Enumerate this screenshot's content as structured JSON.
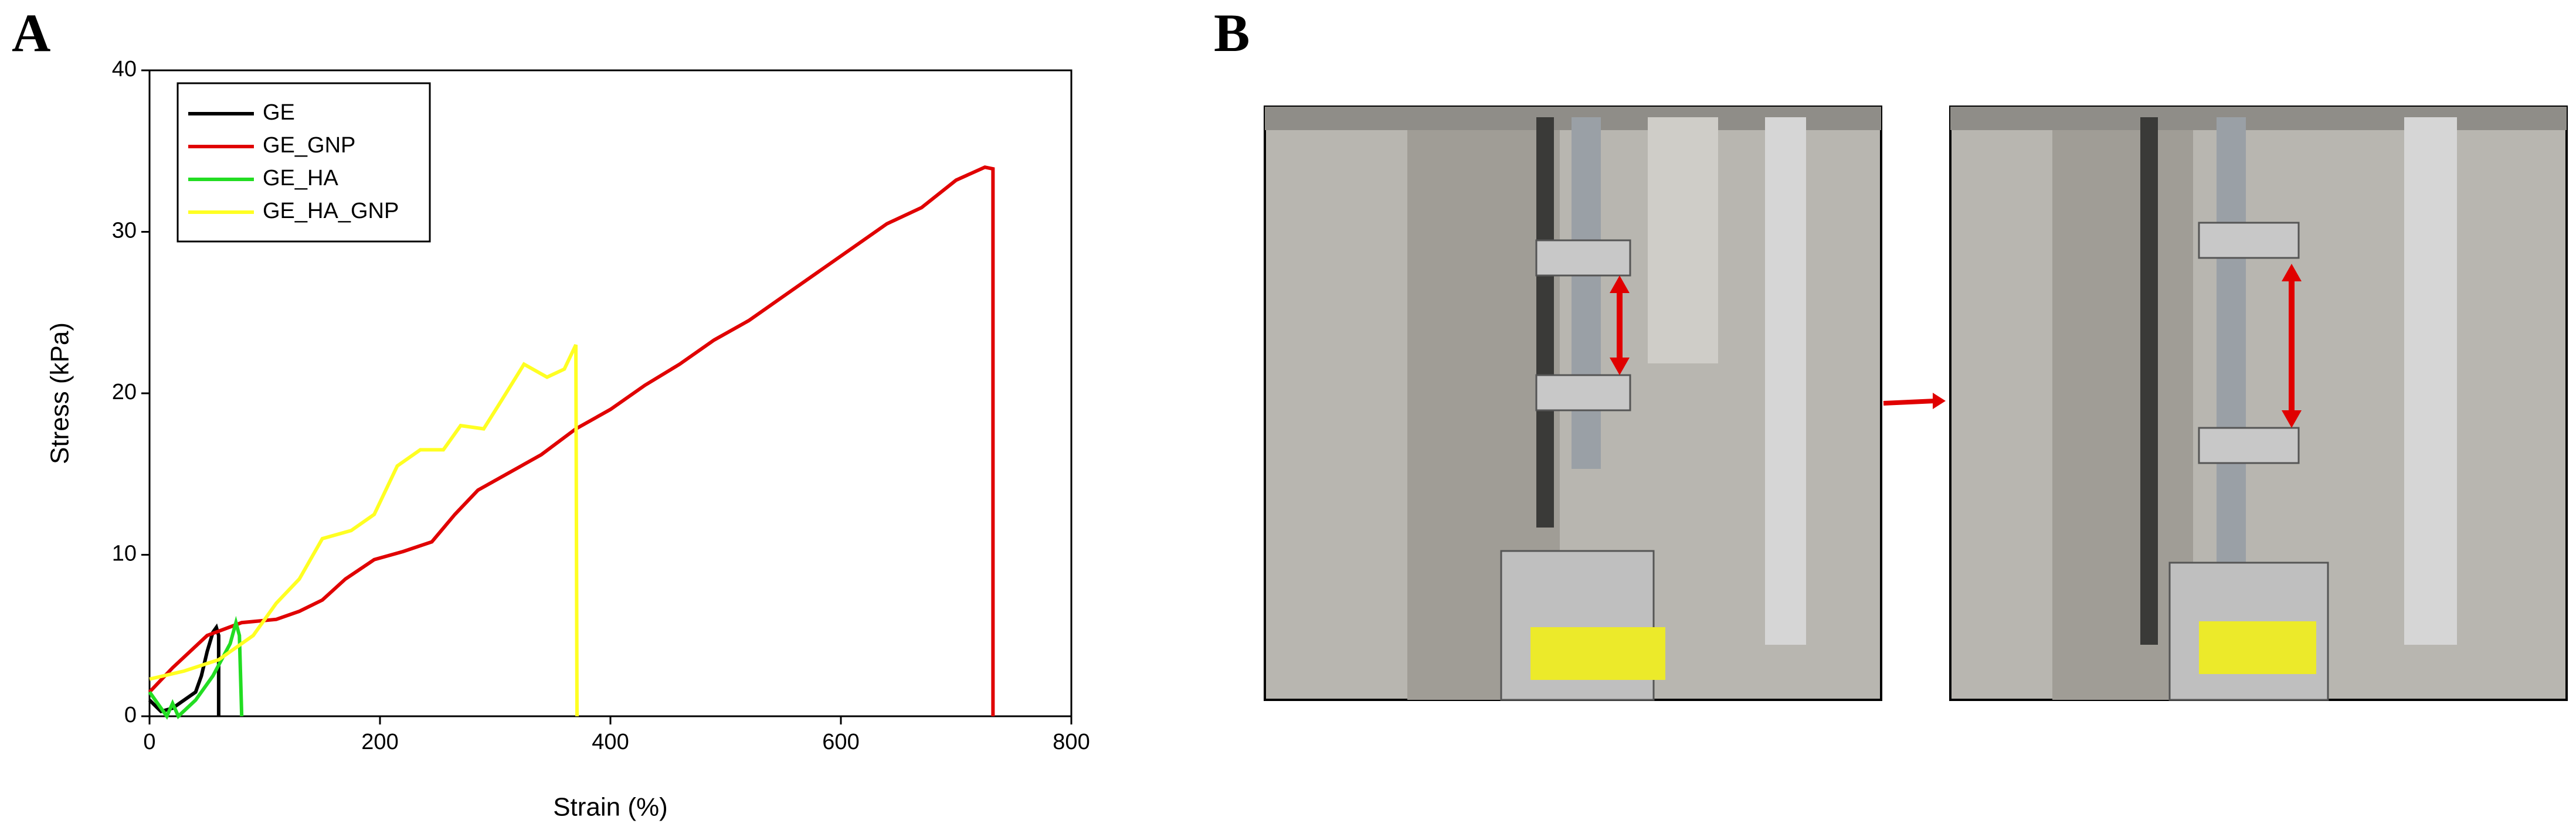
{
  "panel_labels": [
    "A",
    "B"
  ],
  "chart_data": {
    "type": "line",
    "x_label": "Strain (%)",
    "y_label": "Stress (kPa)",
    "xlim": [
      0,
      800
    ],
    "xticks": [
      0,
      200,
      400,
      600,
      800
    ],
    "ylim": [
      0,
      40
    ],
    "yticks": [
      0,
      10,
      20,
      30,
      40
    ],
    "grid": false,
    "legend": "upper-left",
    "series": [
      {
        "name": "GE",
        "color": "#000000",
        "x": [
          0,
          10,
          20,
          30,
          40,
          45,
          50,
          55,
          58,
          60,
          60
        ],
        "values": [
          1,
          0.3,
          0.5,
          1,
          1.5,
          2.5,
          4,
          5.2,
          5.5,
          5,
          0
        ]
      },
      {
        "name": "GE_GNP",
        "color": "#e00000",
        "x": [
          0,
          20,
          50,
          80,
          110,
          130,
          150,
          170,
          195,
          220,
          245,
          265,
          285,
          310,
          340,
          370,
          400,
          430,
          460,
          490,
          520,
          550,
          580,
          610,
          640,
          670,
          700,
          725,
          732,
          732
        ],
        "values": [
          1.5,
          3,
          5,
          5.8,
          6,
          6.5,
          7.2,
          8.5,
          9.7,
          10.2,
          10.8,
          12.5,
          14,
          15,
          16.2,
          17.8,
          19,
          20.5,
          21.8,
          23.3,
          24.5,
          26,
          27.5,
          29,
          30.5,
          31.5,
          33.2,
          34,
          33.9,
          0
        ]
      },
      {
        "name": "GE_HA",
        "color": "#22dd22",
        "x": [
          0,
          10,
          15,
          20,
          25,
          40,
          55,
          70,
          75,
          78,
          80
        ],
        "values": [
          1.5,
          0.5,
          0,
          0.8,
          0,
          1,
          2.5,
          4.5,
          5.8,
          5,
          0
        ]
      },
      {
        "name": "GE_HA_GNP",
        "color": "#ffff22",
        "x": [
          0,
          30,
          60,
          90,
          110,
          130,
          150,
          175,
          195,
          215,
          235,
          255,
          270,
          290,
          305,
          325,
          345,
          360,
          370,
          371
        ],
        "values": [
          2.3,
          2.8,
          3.5,
          5,
          7,
          8.5,
          11,
          11.5,
          12.5,
          15.5,
          16.5,
          16.5,
          18,
          17.8,
          19.5,
          21.8,
          21,
          21.5,
          23,
          0
        ]
      }
    ]
  }
}
